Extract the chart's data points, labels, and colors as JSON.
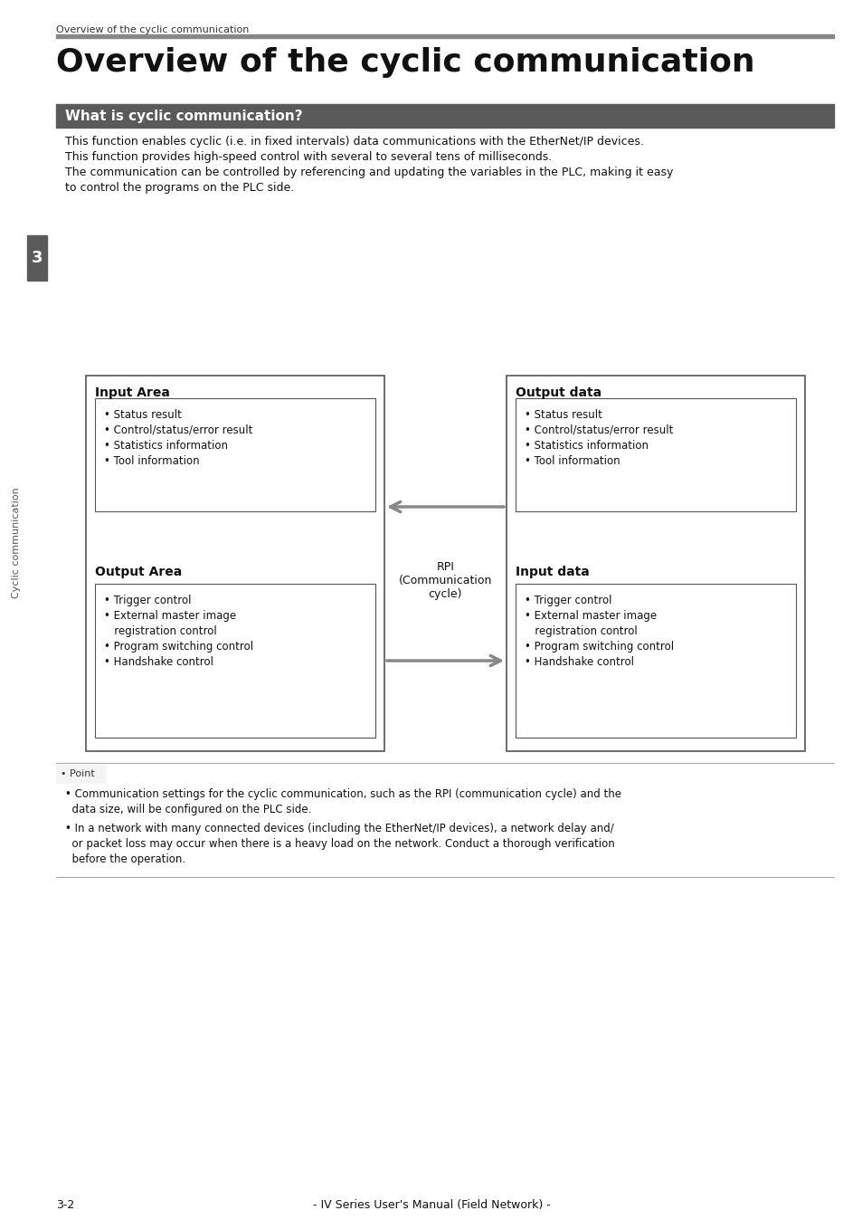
{
  "page_title_small": "Overview of the cyclic communication",
  "page_title_large": "Overview of the cyclic communication",
  "section_header": "What is cyclic communication?",
  "section_header_bg": "#5a5a5a",
  "section_header_text_color": "#ffffff",
  "body_lines": [
    "This function enables cyclic (i.e. in fixed intervals) data communications with the EtherNet/IP devices.",
    "This function provides high-speed control with several to several tens of milliseconds.",
    "The communication can be controlled by referencing and updating the variables in the PLC, making it easy",
    "to control the programs on the PLC side."
  ],
  "left_box_title": "Input Area",
  "left_inner_items": [
    "• Status result",
    "• Control/status/error result",
    "• Statistics information",
    "• Tool information"
  ],
  "left_box2_title": "Output Area",
  "left_inner2_items": [
    "• Trigger control",
    "• External master image",
    "   registration control",
    "• Program switching control",
    "• Handshake control"
  ],
  "right_box_title": "Output data",
  "right_inner_items": [
    "• Status result",
    "• Control/status/error result",
    "• Statistics information",
    "• Tool information"
  ],
  "right_box2_title": "Input data",
  "right_inner2_items": [
    "• Trigger control",
    "• External master image",
    "   registration control",
    "• Program switching control",
    "• Handshake control"
  ],
  "rpi_label": "RPI\n(Communication\ncycle)",
  "point_items": [
    "• Communication settings for the cyclic communication, such as the RPI (communication cycle) and the\n  data size, will be configured on the PLC side.",
    "• In a network with many connected devices (including the EtherNet/IP devices), a network delay and/\n  or packet loss may occur when there is a heavy load on the network. Conduct a thorough verification\n  before the operation."
  ],
  "footer_text": "- IV Series User's Manual (Field Network) -",
  "page_num": "3-2",
  "chapter_num": "3",
  "chapter_label": "Cyclic communication",
  "bg_color": "#ffffff",
  "box_edge_color": "#555555",
  "arrow_color": "#888888",
  "line_color": "#aaaaaa",
  "text_color": "#111111",
  "small_title_color": "#333333",
  "header_line_color": "#888888"
}
